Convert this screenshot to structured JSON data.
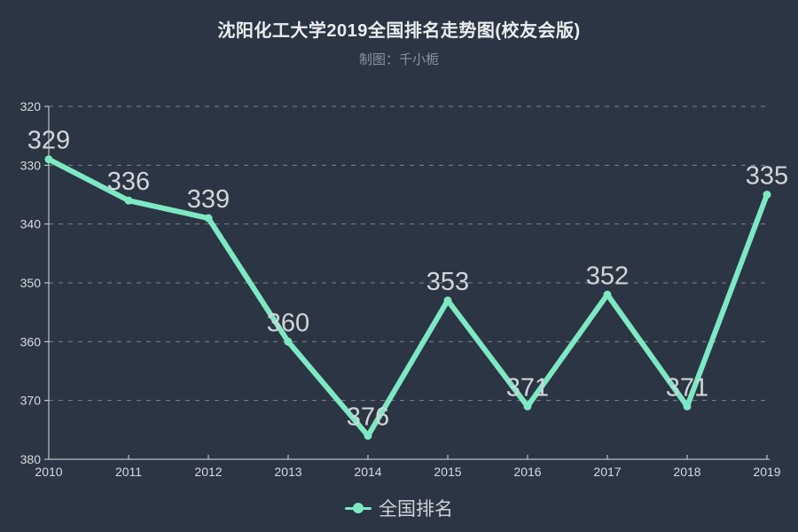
{
  "header": {
    "title": "沈阳化工大学2019全国排名走势图(校友会版)",
    "subtitle": "制图：千小栀"
  },
  "legend": {
    "label": "全国排名"
  },
  "colors": {
    "background": "#2b3543",
    "line": "#7de9c3",
    "grid": "#c3c7cc",
    "axis": "#dde0e3",
    "tick_label": "#d8dbde",
    "data_label": "#d2d5d9",
    "title_text": "#ebedef",
    "subtitle_text": "#8b939d",
    "legend_text": "#cfd3d7"
  },
  "chart_data": {
    "type": "line",
    "title": "沈阳化工大学2019全国排名走势图(校友会版)",
    "subtitle": "制图：千小栀",
    "x": [
      "2010",
      "2011",
      "2012",
      "2013",
      "2014",
      "2015",
      "2016",
      "2017",
      "2018",
      "2019"
    ],
    "series": [
      {
        "name": "全国排名",
        "values": [
          329,
          336,
          339,
          360,
          376,
          353,
          371,
          352,
          371,
          335
        ]
      }
    ],
    "xlabel": "",
    "ylabel": "",
    "ylim": [
      320,
      380
    ],
    "y_tick_step": 10,
    "y_axis_inverted": true,
    "grid": "dashed horizontal",
    "legend_position": "bottom",
    "data_labels": "above points"
  }
}
